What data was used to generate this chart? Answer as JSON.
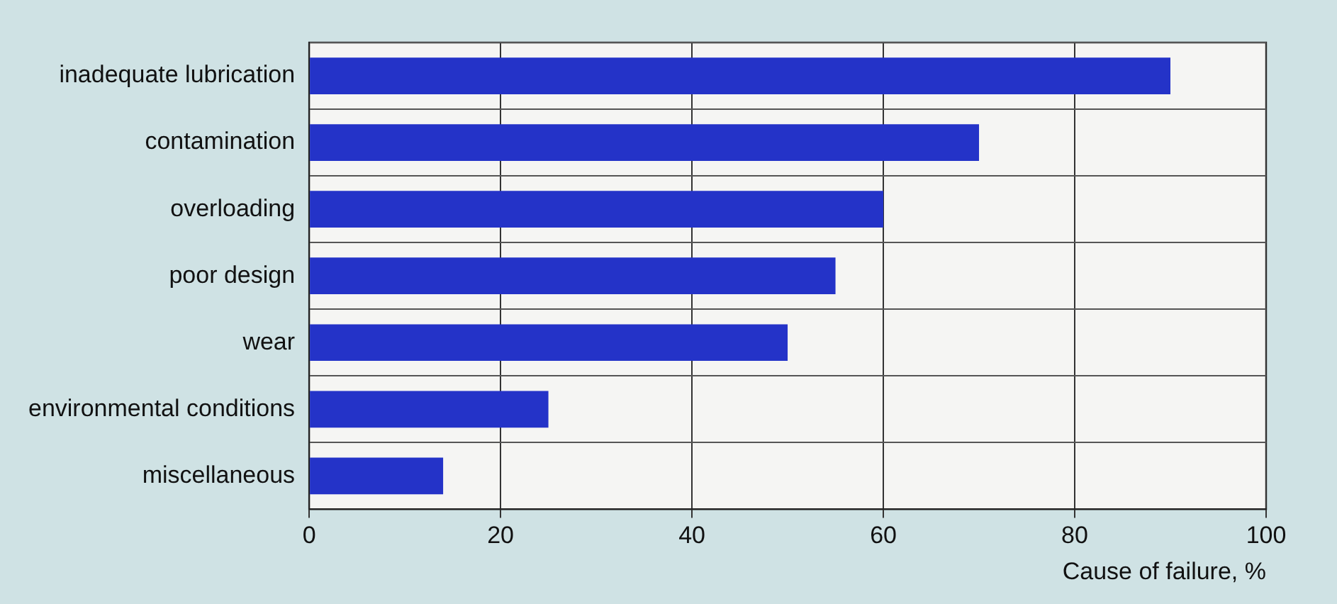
{
  "chart_data": {
    "type": "bar",
    "orientation": "horizontal",
    "xlabel": "Cause of failure, %",
    "categories": [
      "inadequate lubrication",
      "contamination",
      "overloading",
      "poor design",
      "wear",
      "environmental conditions",
      "miscellaneous"
    ],
    "values": [
      90,
      70,
      60,
      55,
      50,
      25,
      14
    ],
    "color": "#2433c8",
    "xlim": [
      0,
      100
    ],
    "xticks": [
      0,
      20,
      40,
      60,
      80,
      100
    ],
    "grid": true,
    "legend": false
  }
}
